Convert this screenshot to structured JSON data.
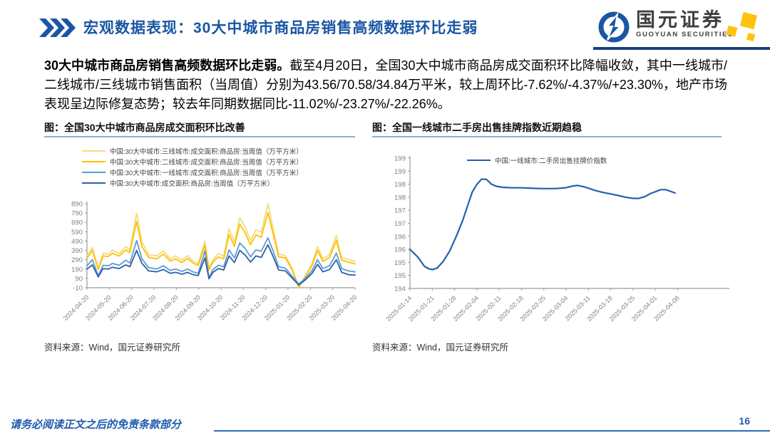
{
  "header": {
    "title": "宏观数据表现：30大中城市商品房销售高频数据环比走弱",
    "logo_cn": "国元证券",
    "logo_en": "GUOYUAN SECURITIES",
    "brand_blue": "#1A56A2",
    "brand_yellow": "#FFC20E"
  },
  "body": {
    "lead": "30大中城市商品房销售高频数据环比走弱。",
    "text": "截至4月20日，全国30大中城市商品房成交面积环比降幅收敛，其中一线城市/二线城市/三线城市销售面积（当周值）分别为43.56/70.58/34.84万平米，较上周环比-7.62%/-4.37%/+23.30%，地产市场表现呈边际修复态势；较去年同期数据同比-11.02%/-23.27%/-22.26%。"
  },
  "chart_data": [
    {
      "type": "line",
      "title": "图：全国30大中城市商品房成交面积环比改善",
      "source": "资料来源：Wind，国元证券研究所",
      "ylim": [
        -10,
        890
      ],
      "y_ticks": [
        {
          "v": 890,
          "label": "890"
        },
        {
          "v": 790,
          "label": "790"
        },
        {
          "v": 690,
          "label": "690"
        },
        {
          "v": 590,
          "label": "590"
        },
        {
          "v": 490,
          "label": "490"
        },
        {
          "v": 390,
          "label": "390"
        },
        {
          "v": 290,
          "label": "290"
        },
        {
          "v": 190,
          "label": "190"
        },
        {
          "v": 90,
          "label": "90"
        },
        {
          "v": -10,
          "label": "-10"
        }
      ],
      "x_tick_labels": [
        "2024-04-20",
        "2024-05-20",
        "2024-06-20",
        "2024-07-20",
        "2024-08-20",
        "2024-09-20",
        "2024-10-20",
        "2024-11-20",
        "2024-12-20",
        "2025-01-20",
        "2025-02-20",
        "2025-03-20",
        "2025-04-20"
      ],
      "x_last_tick_fraction": 1,
      "x": [
        0.0,
        0.02,
        0.042,
        0.06,
        0.08,
        0.095,
        0.12,
        0.145,
        0.16,
        0.185,
        0.205,
        0.23,
        0.26,
        0.285,
        0.31,
        0.33,
        0.355,
        0.375,
        0.395,
        0.415,
        0.44,
        0.455,
        0.47,
        0.49,
        0.51,
        0.53,
        0.55,
        0.57,
        0.59,
        0.61,
        0.63,
        0.65,
        0.675,
        0.695,
        0.715,
        0.74,
        0.765,
        0.79,
        0.815,
        0.84,
        0.86,
        0.88,
        0.905,
        0.93,
        0.95,
        0.975,
        1.0
      ],
      "series": [
        {
          "name": "中国:30大中城市:三线城市:成交面积:商品房:当周值（万平方米）",
          "color": "#F5DB7E",
          "width": 1.8,
          "values": [
            330,
            420,
            195,
            360,
            350,
            395,
            355,
            430,
            395,
            790,
            480,
            345,
            330,
            385,
            300,
            330,
            285,
            335,
            280,
            250,
            490,
            195,
            290,
            355,
            330,
            620,
            480,
            740,
            640,
            495,
            610,
            585,
            890,
            620,
            350,
            335,
            200,
            -10,
            120,
            250,
            430,
            300,
            345,
            550,
            310,
            295,
            270
          ]
        },
        {
          "name": "中国:30大中城市:二线城市:成交面积:商品房:当周值（万平方米）",
          "color": "#FFC000",
          "width": 1.8,
          "values": [
            305,
            390,
            185,
            330,
            325,
            360,
            330,
            395,
            365,
            700,
            430,
            315,
            300,
            350,
            275,
            300,
            260,
            305,
            255,
            230,
            445,
            180,
            265,
            320,
            300,
            560,
            435,
            670,
            580,
            450,
            555,
            530,
            795,
            560,
            320,
            310,
            185,
            0,
            110,
            230,
            390,
            270,
            315,
            495,
            285,
            265,
            245
          ]
        },
        {
          "name": "中国:30大中城市:一线城市:成交面积:商品房:当周值（万平方米）",
          "color": "#5B9BD5",
          "width": 1.8,
          "values": [
            225,
            290,
            120,
            230,
            225,
            250,
            230,
            285,
            255,
            495,
            300,
            205,
            190,
            225,
            175,
            190,
            165,
            190,
            160,
            145,
            385,
            95,
            185,
            230,
            215,
            395,
            310,
            470,
            410,
            320,
            395,
            380,
            525,
            380,
            215,
            200,
            115,
            30,
            90,
            175,
            290,
            195,
            225,
            360,
            195,
            170,
            160
          ]
        },
        {
          "name": "中国:30大中城市:成交面积:商品房:当周值（万平方米）",
          "color": "#2E61A8",
          "width": 1.8,
          "values": [
            190,
            235,
            105,
            195,
            190,
            210,
            195,
            235,
            215,
            390,
            250,
            170,
            160,
            185,
            145,
            155,
            135,
            155,
            130,
            120,
            310,
            85,
            155,
            195,
            180,
            330,
            260,
            390,
            340,
            265,
            330,
            315,
            450,
            320,
            180,
            170,
            95,
            20,
            75,
            145,
            240,
            160,
            185,
            290,
            155,
            130,
            125
          ]
        }
      ]
    },
    {
      "type": "line",
      "title": "图：全国一线城市二手房出售挂牌指数近期趋稳",
      "source": "资料来源：Wind，国元证券研究所",
      "ylim": [
        194,
        199
      ],
      "y_ticks": [
        {
          "v": 199,
          "label": "199"
        },
        {
          "v": 198.5,
          "label": "199"
        },
        {
          "v": 198,
          "label": "198"
        },
        {
          "v": 197.5,
          "label": "198"
        },
        {
          "v": 197,
          "label": "197"
        },
        {
          "v": 196.5,
          "label": "197"
        },
        {
          "v": 196,
          "label": "196"
        },
        {
          "v": 195.5,
          "label": "196"
        },
        {
          "v": 195,
          "label": "195"
        },
        {
          "v": 194.5,
          "label": "195"
        },
        {
          "v": 194,
          "label": "194"
        }
      ],
      "x_tick_labels": [
        "2025-01-14",
        "2025-01-21",
        "2025-01-28",
        "2025-02-04",
        "2025-02-11",
        "2025-02-18",
        "2025-02-25",
        "2025-03-04",
        "2025-03-11",
        "2025-03-18",
        "2025-03-25",
        "2025-04-01",
        "2025-04-08"
      ],
      "x_last_tick_fraction": 0.838,
      "x": [
        0.0,
        0.025,
        0.045,
        0.06,
        0.07,
        0.085,
        0.105,
        0.125,
        0.145,
        0.165,
        0.18,
        0.195,
        0.21,
        0.225,
        0.24,
        0.255,
        0.27,
        0.29,
        0.32,
        0.35,
        0.39,
        0.42,
        0.455,
        0.487,
        0.51,
        0.525,
        0.545,
        0.56,
        0.58,
        0.605,
        0.626,
        0.65,
        0.675,
        0.696,
        0.715,
        0.735,
        0.755,
        0.766,
        0.785,
        0.8,
        0.815,
        0.83
      ],
      "series": [
        {
          "name": "中国:一线城市:二手房出售挂牌价指数",
          "color": "#2360AE",
          "width": 2.2,
          "values": [
            195.5,
            195.2,
            194.85,
            194.75,
            194.72,
            194.78,
            195.05,
            195.45,
            196.0,
            196.6,
            197.15,
            197.7,
            198.0,
            198.2,
            198.18,
            198.0,
            197.92,
            197.88,
            197.86,
            197.86,
            197.84,
            197.83,
            197.83,
            197.86,
            197.93,
            197.95,
            197.9,
            197.84,
            197.76,
            197.68,
            197.63,
            197.57,
            197.5,
            197.46,
            197.45,
            197.52,
            197.65,
            197.7,
            197.79,
            197.79,
            197.73,
            197.66
          ]
        }
      ]
    }
  ],
  "footer": {
    "disclaimer": "请务必阅读正文之后的免责条款部分",
    "page": "16"
  }
}
